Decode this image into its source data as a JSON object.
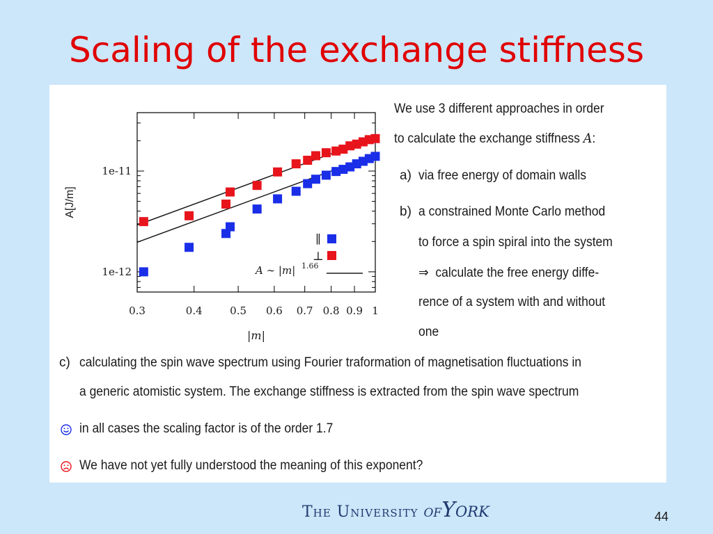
{
  "title": "Scaling of the exchange stiffness",
  "page_number": "44",
  "footer": {
    "the_university": "The University",
    "of": "of",
    "york": "York"
  },
  "text": {
    "intro_line1": "We use 3 different approaches in order",
    "intro_line2": "to calculate the exchange stiffness",
    "intro_symbol": "A",
    "intro_colon": ":",
    "a_tag": "a)",
    "a_text": "via free energy of domain walls",
    "b_tag": "b)",
    "b_line1": "a constrained Monte Carlo method",
    "b_line2": "to force a spin spiral into the system",
    "b_arrow": "⇒",
    "b_line3": "calculate the free energy diffe-",
    "b_line4": "rence of a system with and without",
    "b_line5": "one",
    "c_tag": "c)",
    "c_line1": "calculating the spin wave spectrum using Fourier traformation of magnetisation fluctuations in",
    "c_line2": "a generic atomistic system. The exchange stiffness is extracted from the spin wave spectrum",
    "smile_text": "in all cases the scaling factor is of the order 1.7",
    "frown_text": "We have not yet fully understood the meaning of this exponent?"
  },
  "colors": {
    "title": "#e00000",
    "background": "#cce6fa",
    "panel": "#ffffff",
    "parallel": "#e8141c",
    "perpendicular": "#1a2ee8",
    "footer": "#1f3a6e"
  },
  "chart_data": {
    "type": "scatter",
    "xscale": "log",
    "yscale": "log",
    "xlabel": "|m|",
    "ylabel": "A[J/m]",
    "xlim": [
      0.3,
      1
    ],
    "ylim": [
      6.3e-13,
      3.8e-11
    ],
    "xticks": [
      0.3,
      0.4,
      0.5,
      0.6,
      0.7,
      0.8,
      0.9,
      1
    ],
    "xtick_labels": [
      "0.3",
      "0.4",
      "0.5",
      "0.6",
      "0.7",
      "0.8",
      "0.9",
      "1"
    ],
    "yticks": [
      1e-12,
      1e-11
    ],
    "ytick_labels": [
      "1e-12",
      "1e-11"
    ],
    "legend": [
      {
        "symbol": "∥",
        "color": "#1a2ee8"
      },
      {
        "symbol": "⊥",
        "color": "#e8141c"
      }
    ],
    "annotation": {
      "text": "A ∼ |m|",
      "exponent": "1.66"
    },
    "series": [
      {
        "color": "#e8141c",
        "x": [
          0.31,
          0.39,
          0.47,
          0.48,
          0.55,
          0.61,
          0.67,
          0.71,
          0.74,
          0.78,
          0.82,
          0.85,
          0.88,
          0.91,
          0.94,
          0.97,
          1.0
        ],
        "y": [
          3.15e-12,
          3.6e-12,
          4.7e-12,
          6.2e-12,
          7.2e-12,
          9.8e-12,
          1.18e-11,
          1.28e-11,
          1.42e-11,
          1.52e-11,
          1.58e-11,
          1.65e-11,
          1.78e-11,
          1.85e-11,
          1.95e-11,
          2.05e-11,
          2.1e-11
        ]
      },
      {
        "color": "#1a2ee8",
        "x": [
          0.31,
          0.39,
          0.47,
          0.48,
          0.55,
          0.61,
          0.67,
          0.71,
          0.74,
          0.78,
          0.82,
          0.85,
          0.88,
          0.91,
          0.94,
          0.97,
          1.0
        ],
        "y": [
          1e-12,
          1.75e-12,
          2.4e-12,
          2.8e-12,
          4.2e-12,
          5.3e-12,
          6.3e-12,
          7.5e-12,
          8.3e-12,
          9.1e-12,
          9.9e-12,
          1.04e-11,
          1.1e-11,
          1.18e-11,
          1.25e-11,
          1.33e-11,
          1.4e-11
        ]
      }
    ],
    "fit_lines": [
      {
        "prefactor": 2.15e-11,
        "exponent": 1.66
      },
      {
        "prefactor": 1.45e-11,
        "exponent": 1.66
      }
    ]
  }
}
